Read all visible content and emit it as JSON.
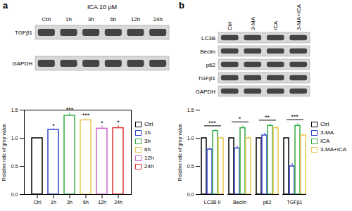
{
  "chart_data": [
    {
      "type": "bar",
      "panel": "a",
      "title": "ICA 10 μM",
      "blot_lanes": [
        "Ctrl",
        "1h",
        "3h",
        "6h",
        "12h",
        "24h"
      ],
      "blot_rows": [
        "TGFβ1",
        "GAPDH"
      ],
      "categories": [
        "Ctrl",
        "1h",
        "3h",
        "6h",
        "12h",
        "24h"
      ],
      "values": [
        1.0,
        1.15,
        1.4,
        1.32,
        1.17,
        1.18
      ],
      "errors": [
        null,
        0.02,
        0.05,
        0.03,
        0.05,
        0.05
      ],
      "significance": [
        null,
        "*",
        "***",
        "***",
        "*",
        "*"
      ],
      "colors": [
        "#000000",
        "#3344cc",
        "#33aa44",
        "#e6c84a",
        "#cc66cc",
        "#dd3333"
      ],
      "ylabel": "Relative rate of grey value",
      "ylim": [
        0,
        1.5
      ],
      "yticks": [
        {
          "value": 0,
          "label": "0.0"
        },
        {
          "value": 0.5,
          "label": "0.5"
        },
        {
          "value": 1.0,
          "label": "1.0"
        },
        {
          "value": 1.5,
          "label": "1.5"
        }
      ],
      "legend": "right"
    },
    {
      "type": "bar",
      "panel": "b",
      "blot_lanes": [
        "Ctrl",
        "3-MA",
        "ICA",
        "3-MA+ICA"
      ],
      "blot_rows": [
        "LC3B",
        "Beclin",
        "p62",
        "TGFβ1",
        "GAPDH"
      ],
      "categories": [
        "LC3B II",
        "Beclin",
        "p62",
        "TGFβ1"
      ],
      "series": [
        {
          "name": "Ctrl",
          "color": "#000000",
          "values": [
            1.0,
            1.0,
            1.0,
            1.0
          ],
          "errors": [
            null,
            null,
            null,
            null
          ]
        },
        {
          "name": "3-MA",
          "color": "#3344cc",
          "values": [
            0.8,
            0.82,
            1.05,
            0.5
          ],
          "errors": [
            0.03,
            0.04,
            0.04,
            0.05
          ]
        },
        {
          "name": "ICA",
          "color": "#33aa44",
          "values": [
            1.13,
            1.18,
            1.22,
            1.22
          ],
          "errors": [
            0.02,
            0.04,
            0.03,
            0.04
          ]
        },
        {
          "name": "3-MA+ICA",
          "color": "#e6c84a",
          "values": [
            1.0,
            1.0,
            1.18,
            1.05
          ],
          "errors": [
            0.02,
            0.03,
            0.03,
            0.03
          ]
        }
      ],
      "significance": [
        "***",
        "*",
        "**",
        "***"
      ],
      "ylabel": "Relative rate of grey value",
      "ylim": [
        0,
        1.5
      ],
      "yticks": [
        {
          "value": 0,
          "label": "0.0"
        },
        {
          "value": 0.5,
          "label": "0.5"
        },
        {
          "value": 1.0,
          "label": "1.0"
        },
        {
          "value": 1.5,
          "label": "1.5"
        }
      ],
      "legend": "right"
    }
  ]
}
